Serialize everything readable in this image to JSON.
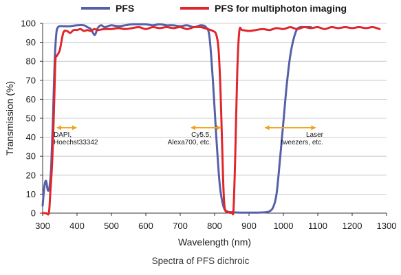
{
  "caption": "Spectra of PFS dichroic",
  "colors": {
    "pfs": "#5560a8",
    "pfs_multiphoton": "#e0262b",
    "annotation_arrow": "#f2a319",
    "grid": "#bdbdbd"
  },
  "chart_data": {
    "type": "line",
    "title": "",
    "xlabel": "Wavelength (nm)",
    "ylabel": "Transmission (%)",
    "xlim": [
      300,
      1300
    ],
    "ylim": [
      0,
      100
    ],
    "xticks": [
      300,
      400,
      500,
      600,
      700,
      800,
      900,
      1000,
      1100,
      1200,
      1300
    ],
    "yticks": [
      0,
      10,
      20,
      30,
      40,
      50,
      60,
      70,
      80,
      90,
      100
    ],
    "grid": "horizontal",
    "legend_position": "top",
    "series": [
      {
        "name": "PFS",
        "color": "#5560a8",
        "points": [
          [
            300,
            4
          ],
          [
            305,
            14
          ],
          [
            310,
            17
          ],
          [
            315,
            12
          ],
          [
            320,
            14
          ],
          [
            325,
            25
          ],
          [
            330,
            50
          ],
          [
            335,
            80
          ],
          [
            340,
            95
          ],
          [
            345,
            98
          ],
          [
            350,
            98.5
          ],
          [
            360,
            98.5
          ],
          [
            380,
            98.5
          ],
          [
            400,
            99
          ],
          [
            420,
            99
          ],
          [
            430,
            98
          ],
          [
            440,
            97
          ],
          [
            450,
            94
          ],
          [
            455,
            95
          ],
          [
            460,
            97.5
          ],
          [
            470,
            99
          ],
          [
            480,
            98
          ],
          [
            490,
            98.5
          ],
          [
            500,
            99
          ],
          [
            520,
            98.5
          ],
          [
            540,
            99
          ],
          [
            560,
            99.5
          ],
          [
            580,
            99.5
          ],
          [
            600,
            99.5
          ],
          [
            620,
            99
          ],
          [
            640,
            99.5
          ],
          [
            660,
            99
          ],
          [
            680,
            99
          ],
          [
            700,
            98.5
          ],
          [
            720,
            99
          ],
          [
            740,
            98
          ],
          [
            760,
            99
          ],
          [
            775,
            98
          ],
          [
            785,
            93
          ],
          [
            795,
            70
          ],
          [
            805,
            40
          ],
          [
            815,
            15
          ],
          [
            825,
            4
          ],
          [
            835,
            1
          ],
          [
            850,
            0.5
          ],
          [
            875,
            0.3
          ],
          [
            900,
            0.3
          ],
          [
            925,
            0.3
          ],
          [
            950,
            0.5
          ],
          [
            960,
            1
          ],
          [
            970,
            3
          ],
          [
            980,
            10
          ],
          [
            990,
            28
          ],
          [
            1000,
            48
          ],
          [
            1010,
            68
          ],
          [
            1020,
            83
          ],
          [
            1030,
            92
          ],
          [
            1040,
            97
          ],
          [
            1050,
            98
          ],
          [
            1060,
            98
          ],
          [
            1080,
            98
          ]
        ]
      },
      {
        "name": "PFS for multiphoton imaging",
        "color": "#e0262b",
        "points": [
          [
            300,
            0
          ],
          [
            310,
            0
          ],
          [
            318,
            0
          ],
          [
            322,
            10
          ],
          [
            328,
            28
          ],
          [
            333,
            55
          ],
          [
            337,
            80
          ],
          [
            342,
            83
          ],
          [
            350,
            86
          ],
          [
            360,
            95
          ],
          [
            370,
            96
          ],
          [
            380,
            95
          ],
          [
            390,
            96.5
          ],
          [
            400,
            96.5
          ],
          [
            410,
            97
          ],
          [
            420,
            96
          ],
          [
            430,
            96.5
          ],
          [
            440,
            96
          ],
          [
            450,
            97
          ],
          [
            460,
            96.5
          ],
          [
            480,
            97
          ],
          [
            500,
            97
          ],
          [
            520,
            97.5
          ],
          [
            540,
            97
          ],
          [
            560,
            97.5
          ],
          [
            580,
            98
          ],
          [
            600,
            97
          ],
          [
            620,
            98
          ],
          [
            640,
            97.5
          ],
          [
            660,
            98
          ],
          [
            680,
            97.5
          ],
          [
            700,
            98
          ],
          [
            720,
            97
          ],
          [
            740,
            98
          ],
          [
            760,
            98
          ],
          [
            780,
            97
          ],
          [
            795,
            96
          ],
          [
            805,
            94
          ],
          [
            812,
            85
          ],
          [
            818,
            60
          ],
          [
            822,
            35
          ],
          [
            826,
            12
          ],
          [
            830,
            2
          ],
          [
            840,
            0.5
          ],
          [
            850,
            0.3
          ],
          [
            855,
            2
          ],
          [
            860,
            30
          ],
          [
            866,
            75
          ],
          [
            872,
            96
          ],
          [
            880,
            96.5
          ],
          [
            900,
            96
          ],
          [
            920,
            96.5
          ],
          [
            940,
            97
          ],
          [
            960,
            96.5
          ],
          [
            980,
            97.5
          ],
          [
            1000,
            97
          ],
          [
            1020,
            98
          ],
          [
            1040,
            97
          ],
          [
            1060,
            98
          ],
          [
            1080,
            97.5
          ],
          [
            1100,
            98
          ],
          [
            1120,
            97
          ],
          [
            1140,
            98
          ],
          [
            1160,
            97.5
          ],
          [
            1180,
            98
          ],
          [
            1200,
            97.5
          ],
          [
            1220,
            98
          ],
          [
            1240,
            97.5
          ],
          [
            1260,
            98
          ],
          [
            1280,
            97
          ]
        ]
      }
    ],
    "annotations": [
      {
        "text": [
          "DAPI,",
          "Hoechst33342"
        ],
        "arrow_from_x": 340,
        "arrow_to_x": 400,
        "y": 45
      },
      {
        "text": [
          "Cy5.5,",
          "Alexa700, etc."
        ],
        "arrow_from_x": 730,
        "arrow_to_x": 820,
        "y": 45
      },
      {
        "text": [
          "Laser",
          "tweezers, etc."
        ],
        "arrow_from_x": 945,
        "arrow_to_x": 1095,
        "y": 45
      }
    ]
  }
}
